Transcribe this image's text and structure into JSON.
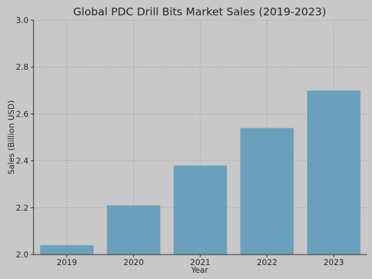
{
  "chart_data": {
    "type": "bar",
    "title": "Global PDC Drill Bits Market Sales (2019-2023)",
    "xlabel": "Year",
    "ylabel": "Sales (Billion USD)",
    "categories": [
      "2019",
      "2020",
      "2021",
      "2022",
      "2023"
    ],
    "values": [
      2.04,
      2.21,
      2.38,
      2.54,
      2.7
    ],
    "ylim": [
      2.0,
      3.0
    ],
    "yticks": [
      "2.0",
      "2.2",
      "2.4",
      "2.6",
      "2.8",
      "3.0"
    ],
    "grid": true,
    "bar_color": "#6aa0bb",
    "background_color": "#c8c8c8"
  }
}
